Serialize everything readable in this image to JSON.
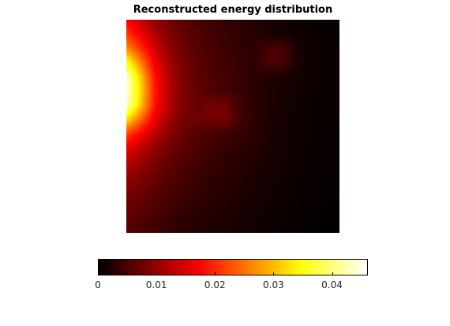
{
  "chart_data": {
    "type": "heatmap",
    "title": "Reconstructed energy distribution",
    "colormap": "hot",
    "color_limits": [
      0,
      0.046
    ],
    "colorbar": {
      "placement": "bottom",
      "ticks": [
        0,
        0.01,
        0.02,
        0.03,
        0.04
      ],
      "tick_labels": [
        "0",
        "0.01",
        "0.02",
        "0.03",
        "0.04"
      ]
    },
    "grid_size": [
      16,
      16
    ],
    "values": [
      [
        0.017,
        0.0135,
        0.0098,
        0.0075,
        0.0058,
        0.0048,
        0.004,
        0.0034,
        0.0028,
        0.0022,
        0.0016,
        0.0012,
        0.0009,
        0.0007,
        0.0005,
        0.0005
      ],
      [
        0.021,
        0.0165,
        0.0118,
        0.0088,
        0.0068,
        0.0054,
        0.0045,
        0.0038,
        0.0032,
        0.0026,
        0.002,
        0.0014,
        0.001,
        0.0008,
        0.0006,
        0.0005
      ],
      [
        0.027,
        0.0205,
        0.014,
        0.01,
        0.0074,
        0.0058,
        0.0048,
        0.0041,
        0.0035,
        0.003,
        0.0045,
        0.0048,
        0.0016,
        0.0009,
        0.0007,
        0.0006
      ],
      [
        0.036,
        0.026,
        0.0165,
        0.0112,
        0.008,
        0.0062,
        0.0051,
        0.0043,
        0.0037,
        0.0032,
        0.005,
        0.0052,
        0.002,
        0.001,
        0.0007,
        0.0006
      ],
      [
        0.044,
        0.031,
        0.0185,
        0.012,
        0.0085,
        0.0065,
        0.0053,
        0.0045,
        0.0038,
        0.003,
        0.0024,
        0.0018,
        0.0013,
        0.0009,
        0.0007,
        0.0006
      ],
      [
        0.045,
        0.032,
        0.019,
        0.0122,
        0.0086,
        0.0066,
        0.0054,
        0.0045,
        0.0038,
        0.0029,
        0.0022,
        0.0016,
        0.0012,
        0.0008,
        0.0006,
        0.0006
      ],
      [
        0.044,
        0.031,
        0.0185,
        0.012,
        0.0085,
        0.007,
        0.0075,
        0.0078,
        0.0042,
        0.003,
        0.0021,
        0.0015,
        0.0011,
        0.0008,
        0.0006,
        0.0006
      ],
      [
        0.033,
        0.0245,
        0.016,
        0.011,
        0.008,
        0.0072,
        0.0078,
        0.008,
        0.0044,
        0.0031,
        0.0021,
        0.0014,
        0.001,
        0.0007,
        0.0006,
        0.0006
      ],
      [
        0.022,
        0.0175,
        0.0125,
        0.0092,
        0.007,
        0.0058,
        0.005,
        0.0043,
        0.0036,
        0.0028,
        0.002,
        0.0014,
        0.001,
        0.0007,
        0.0005,
        0.0005
      ],
      [
        0.016,
        0.0132,
        0.01,
        0.0078,
        0.0062,
        0.0051,
        0.0043,
        0.0037,
        0.0031,
        0.0025,
        0.0018,
        0.0013,
        0.0009,
        0.0007,
        0.0005,
        0.0005
      ],
      [
        0.0125,
        0.0106,
        0.0084,
        0.0067,
        0.0054,
        0.0045,
        0.0038,
        0.0032,
        0.0027,
        0.0022,
        0.0016,
        0.0012,
        0.0009,
        0.0006,
        0.0005,
        0.0004
      ],
      [
        0.0102,
        0.0088,
        0.0072,
        0.0058,
        0.0048,
        0.004,
        0.0034,
        0.0029,
        0.0024,
        0.0019,
        0.0014,
        0.0011,
        0.0008,
        0.0006,
        0.0005,
        0.0004
      ],
      [
        0.0086,
        0.0075,
        0.0062,
        0.0051,
        0.0042,
        0.0035,
        0.003,
        0.0025,
        0.0021,
        0.0017,
        0.0013,
        0.001,
        0.0007,
        0.0005,
        0.0004,
        0.0004
      ],
      [
        0.0074,
        0.0065,
        0.0054,
        0.0045,
        0.0037,
        0.0031,
        0.0026,
        0.0022,
        0.0018,
        0.0015,
        0.0011,
        0.0009,
        0.0006,
        0.0005,
        0.0004,
        0.0003
      ],
      [
        0.0064,
        0.0056,
        0.0047,
        0.0039,
        0.0032,
        0.0027,
        0.0023,
        0.0019,
        0.0016,
        0.0013,
        0.001,
        0.0008,
        0.0006,
        0.0004,
        0.0003,
        0.0003
      ],
      [
        0.0056,
        0.0049,
        0.0041,
        0.0034,
        0.0028,
        0.0023,
        0.002,
        0.0017,
        0.0014,
        0.0011,
        0.0009,
        0.0007,
        0.0005,
        0.0004,
        0.0003,
        0.0003
      ]
    ]
  }
}
